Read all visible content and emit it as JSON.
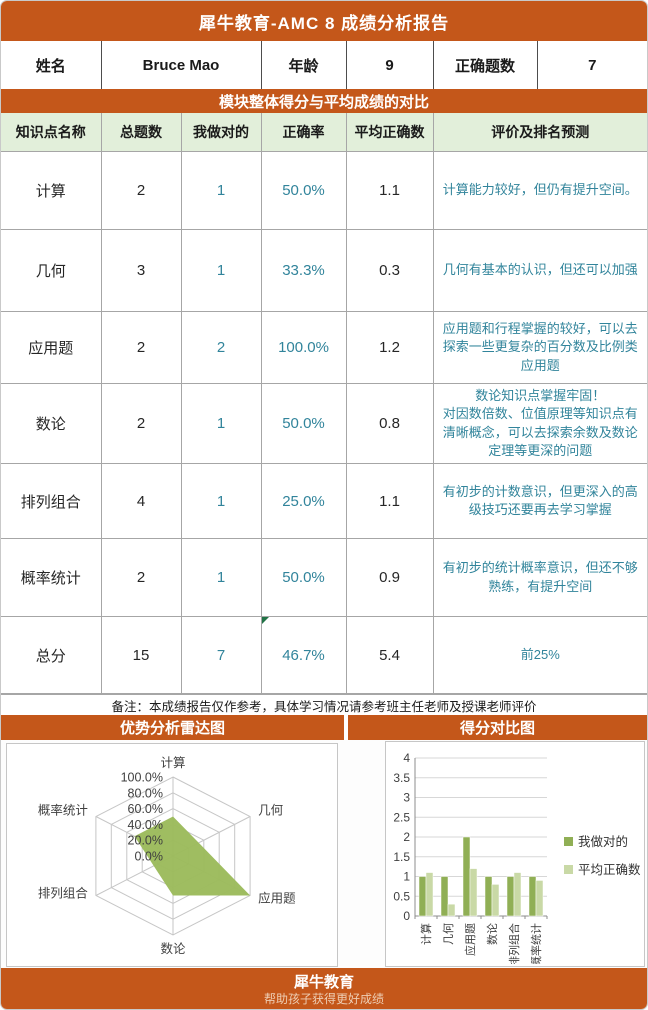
{
  "title": "犀牛教育-AMC 8 成绩分析报告",
  "info": {
    "name_label": "姓名",
    "name_value": "Bruce Mao",
    "age_label": "年龄",
    "age_value": "9",
    "correct_label": "正确题数",
    "correct_value": "7"
  },
  "section_header": "模块整体得分与平均成绩的对比",
  "table": {
    "headers": [
      "知识点名称",
      "总题数",
      "我做对的",
      "正确率",
      "平均正确数",
      "评价及排名预测"
    ],
    "rows": [
      {
        "name": "计算",
        "total": "2",
        "mine": "1",
        "rate": "50.0%",
        "avg": "1.1",
        "comment": "计算能力较好，但仍有提升空间。",
        "marker": false
      },
      {
        "name": "几何",
        "total": "3",
        "mine": "1",
        "rate": "33.3%",
        "avg": "0.3",
        "comment": "几何有基本的认识，但还可以加强",
        "marker": false
      },
      {
        "name": "应用题",
        "total": "2",
        "mine": "2",
        "rate": "100.0%",
        "avg": "1.2",
        "comment": "应用题和行程掌握的较好，可以去探索一些更复杂的百分数及比例类应用题",
        "marker": false
      },
      {
        "name": "数论",
        "total": "2",
        "mine": "1",
        "rate": "50.0%",
        "avg": "0.8",
        "comment": "数论知识点掌握牢固！\n对因数倍数、位值原理等知识点有清晰概念，可以去探索余数及数论定理等更深的问题",
        "marker": false
      },
      {
        "name": "排列组合",
        "total": "4",
        "mine": "1",
        "rate": "25.0%",
        "avg": "1.1",
        "comment": "有初步的计数意识，但更深入的高级技巧还要再去学习掌握",
        "marker": false
      },
      {
        "name": "概率统计",
        "total": "2",
        "mine": "1",
        "rate": "50.0%",
        "avg": "0.9",
        "comment": "有初步的统计概率意识，但还不够熟练，有提升空间",
        "marker": false
      },
      {
        "name": "总分",
        "total": "15",
        "mine": "7",
        "rate": "46.7%",
        "avg": "5.4",
        "comment": "前25%",
        "marker": true
      }
    ],
    "note": "备注：本成绩报告仅作参考，具体学习情况请参考班主任老师及授课老师评价"
  },
  "chart_headers": {
    "radar": "优势分析雷达图",
    "bar": "得分对比图"
  },
  "chart_data": [
    {
      "type": "radar",
      "title": "优势分析雷达图",
      "categories": [
        "计算",
        "几何",
        "应用题",
        "数论",
        "排列组合",
        "概率统计"
      ],
      "values_percent": [
        50.0,
        33.3,
        100.0,
        50.0,
        25.0,
        50.0
      ],
      "ring_labels": [
        "100.0%",
        "80.0%",
        "60.0%",
        "40.0%",
        "20.0%",
        "0.0%"
      ],
      "axis_range": [
        0,
        100
      ],
      "ring_step_percent": 20,
      "fill_color": "#9cbb5c",
      "grid_color": "#c6c6c6"
    },
    {
      "type": "bar",
      "title": "得分对比图",
      "categories": [
        "计算",
        "几何",
        "应用题",
        "数论",
        "排列组合",
        "概率统计"
      ],
      "series": [
        {
          "name": "我做对的",
          "color": "#90af55",
          "values": [
            1,
            1,
            2,
            1,
            1,
            1
          ]
        },
        {
          "name": "平均正确数",
          "color": "#c9d9a6",
          "values": [
            1.1,
            0.3,
            1.2,
            0.8,
            1.1,
            0.9
          ]
        }
      ],
      "ylim": [
        0,
        4
      ],
      "ytick_step": 0.5,
      "grid": true,
      "legend_position": "right"
    }
  ],
  "footer": {
    "brand": "犀牛教育",
    "slogan": "帮助孩子获得更好成绩"
  },
  "colors": {
    "accent_orange": "#c4571a",
    "header_green": "#e2efda",
    "teal_text": "#31849b",
    "marker_green": "#217346"
  }
}
